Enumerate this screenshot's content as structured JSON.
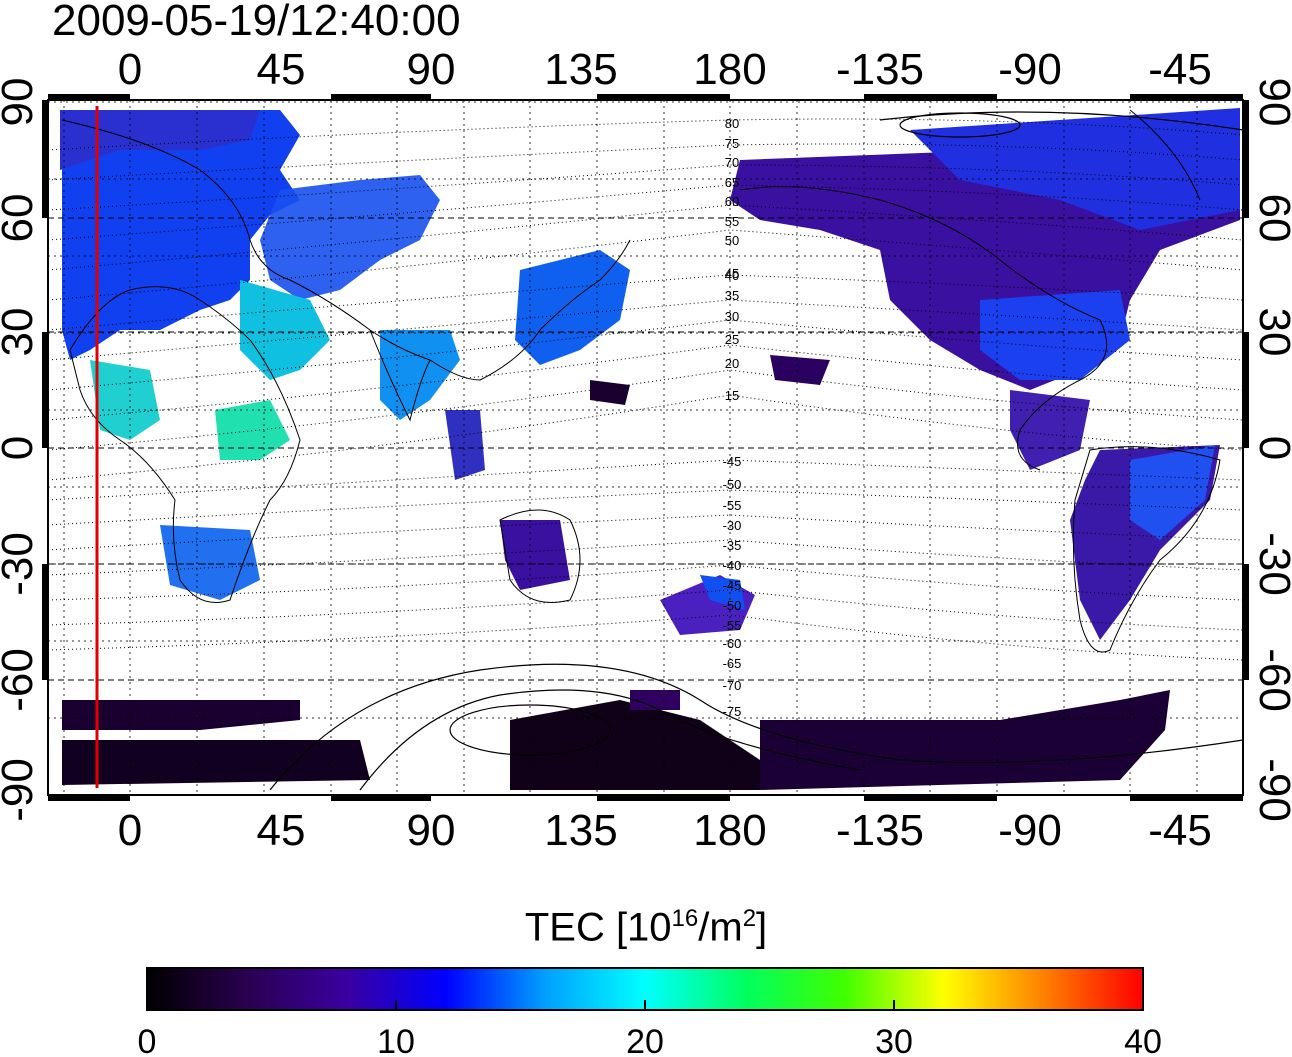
{
  "title": "2009-05-19/12:40:00",
  "map": {
    "lon_ticks_top": [
      "0",
      "45",
      "90",
      "135",
      "180",
      "-135",
      "-90",
      "-45"
    ],
    "lon_ticks_bottom": [
      "0",
      "45",
      "90",
      "135",
      "180",
      "-135",
      "-90",
      "-45"
    ],
    "lat_ticks_left": [
      "90",
      "60",
      "30",
      "0",
      "-30",
      "-60",
      "-90"
    ],
    "lat_ticks_right": [
      "90",
      "60",
      "30",
      "0",
      "-30",
      "-60",
      "-90"
    ],
    "contour_labels": [
      "80",
      "75",
      "70",
      "65",
      "60",
      "55",
      "50",
      "45",
      "40",
      "35",
      "30",
      "25",
      "20",
      "15",
      "-45",
      "-50",
      "-55",
      "-30",
      "-35",
      "-40",
      "-45",
      "-50",
      "-55",
      "-60",
      "-65",
      "-70",
      "-75"
    ],
    "marker_line_color": "#e00000"
  },
  "colorbar": {
    "label_prefix": "TEC  [10",
    "label_sup1": "16",
    "label_mid": "/m",
    "label_sup2": "2",
    "label_suffix": "]",
    "ticks": [
      "0",
      "10",
      "20",
      "30",
      "40"
    ],
    "min": 0,
    "max": 40,
    "colors": [
      "#000000",
      "#2a0050",
      "#3a00a0",
      "#0000ff",
      "#00a0ff",
      "#00ffff",
      "#00ff60",
      "#40ff00",
      "#ffff00",
      "#ff8000",
      "#ff0000"
    ]
  }
}
